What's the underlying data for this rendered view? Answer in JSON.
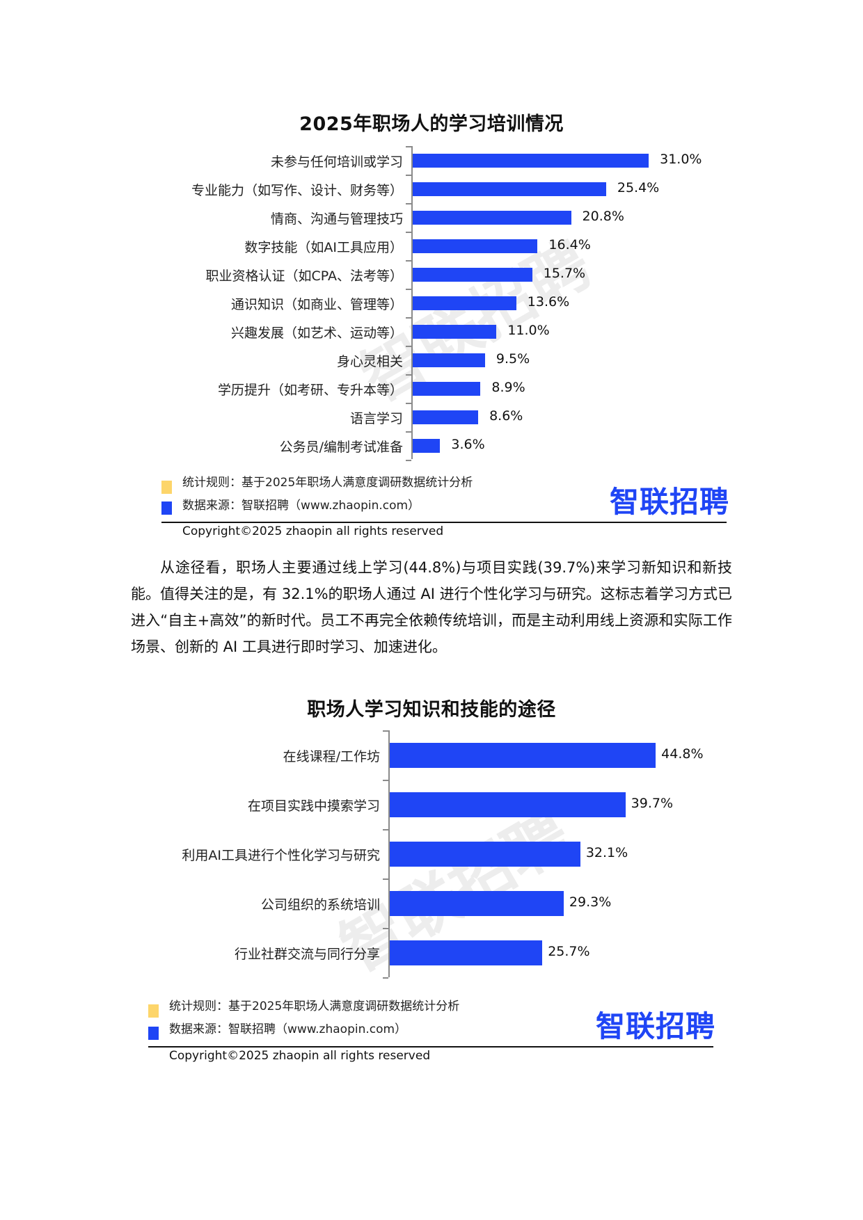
{
  "chart1": {
    "title": "2025年职场人的学习培训情况",
    "watermark": "智联招聘",
    "legend": {
      "rule_text": "统计规则：基于2025年职场人满意度调研数据统计分析",
      "source_text": "数据来源：智联招聘（www.zhaopin.com）",
      "rule_color": "#fdd56a",
      "source_color": "#1f45f5"
    },
    "logo": "智联招聘",
    "copyright": "Copyright©2025 zhaopin all rights reserved"
  },
  "paragraph": "从途径看，职场人主要通过线上学习(44.8%)与项目实践(39.7%)来学习新知识和新技能。值得关注的是，有 32.1%的职场人通过 AI 进行个性化学习与研究。这标志着学习方式已进入“自主+高效”的新时代。员工不再完全依赖传统培训，而是主动利用线上资源和实际工作场景、创新的 AI 工具进行即时学习、加速进化。",
  "chart2": {
    "title": "职场人学习知识和技能的途径",
    "watermark": "智联招聘",
    "legend": {
      "rule_text": "统计规则：基于2025年职场人满意度调研数据统计分析",
      "source_text": "数据来源：智联招聘（www.zhaopin.com）",
      "rule_color": "#fdd56a",
      "source_color": "#1f45f5"
    },
    "logo": "智联招聘",
    "copyright": "Copyright©2025 zhaopin all rights reserved"
  },
  "chart_data": [
    {
      "type": "bar",
      "orientation": "horizontal",
      "title": "2025年职场人的学习培训情况",
      "xlabel": "",
      "ylabel": "",
      "grid": false,
      "legend": "none",
      "bar_color": "#1f45f5",
      "categories": [
        "未参与任何培训或学习",
        "专业能力（如写作、设计、财务等）",
        "情商、沟通与管理技巧",
        "数字技能（如AI工具应用）",
        "职业资格认证（如CPA、法考等）",
        "通识知识（如商业、管理等）",
        "兴趣发展（如艺术、运动等）",
        "身心灵相关",
        "学历提升（如考研、专升本等）",
        "语言学习",
        "公务员/编制考试准备"
      ],
      "values": [
        31.0,
        25.4,
        20.8,
        16.4,
        15.7,
        13.6,
        11.0,
        9.5,
        8.9,
        8.6,
        3.6
      ],
      "value_labels": [
        "31.0%",
        "25.4%",
        "20.8%",
        "16.4%",
        "15.7%",
        "13.6%",
        "11.0%",
        "9.5%",
        "8.9%",
        "8.6%",
        "3.6%"
      ],
      "unit": "%"
    },
    {
      "type": "bar",
      "orientation": "horizontal",
      "title": "职场人学习知识和技能的途径",
      "xlabel": "",
      "ylabel": "",
      "grid": false,
      "legend": "none",
      "bar_color": "#1f45f5",
      "categories": [
        "在线课程/工作坊",
        "在项目实践中摸索学习",
        "利用AI工具进行个性化学习与研究",
        "公司组织的系统培训",
        "行业社群交流与同行分享"
      ],
      "values": [
        44.8,
        39.7,
        32.1,
        29.3,
        25.7
      ],
      "value_labels": [
        "44.8%",
        "39.7%",
        "32.1%",
        "29.3%",
        "25.7%"
      ],
      "unit": "%"
    }
  ]
}
